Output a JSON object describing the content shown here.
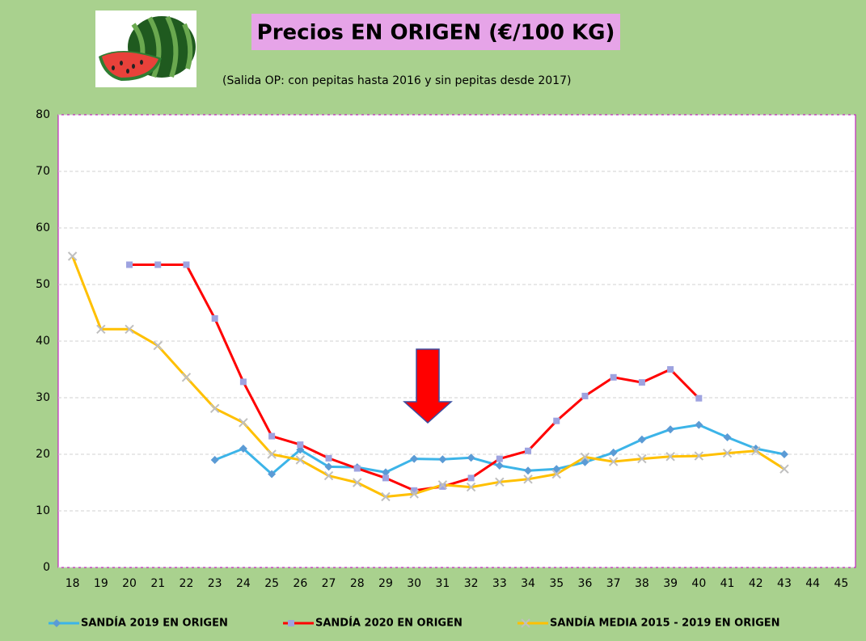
{
  "chart_data": {
    "type": "line",
    "title": "Precios EN ORIGEN (€/100 KG)",
    "subtitle": "(Salida OP: con pepitas hasta 2016 y sin pepitas desde 2017)",
    "categories": [
      "18",
      "19",
      "20",
      "21",
      "22",
      "23",
      "24",
      "25",
      "26",
      "27",
      "28",
      "29",
      "30",
      "31",
      "32",
      "33",
      "34",
      "35",
      "36",
      "37",
      "38",
      "39",
      "40",
      "41",
      "42",
      "43",
      "44",
      "45"
    ],
    "ylim": [
      0,
      80
    ],
    "yticks": [
      0,
      10,
      20,
      30,
      40,
      50,
      60,
      70,
      80
    ],
    "grid": true,
    "legend": "bottom",
    "series": [
      {
        "name": "SANDÍA 2019 EN ORIGEN",
        "color": "#3cb4e8",
        "marker": "diamond",
        "marker_color": "#5b9bd5",
        "values": [
          null,
          null,
          null,
          null,
          null,
          19,
          21,
          16.5,
          20.8,
          17.8,
          17.7,
          16.8,
          19.2,
          19.1,
          19.4,
          18,
          17.1,
          17.4,
          18.6,
          20.3,
          22.6,
          24.4,
          25.2,
          23,
          21,
          20,
          null,
          null
        ]
      },
      {
        "name": "SANDÍA 2020 EN ORIGEN",
        "color": "#ff0000",
        "marker": "square",
        "marker_color": "#9ea3e0",
        "values": [
          null,
          null,
          53.5,
          53.5,
          53.5,
          44,
          32.8,
          23.2,
          21.7,
          19.3,
          17.5,
          15.8,
          13.6,
          14.3,
          15.8,
          19.2,
          20.6,
          25.9,
          30.3,
          33.6,
          32.7,
          35,
          29.9,
          null,
          null,
          null,
          null,
          null
        ]
      },
      {
        "name": "SANDÍA MEDIA 2015 - 2019 EN ORIGEN",
        "color": "#ffc000",
        "marker": "x",
        "marker_color": "#bfbfbf",
        "values": [
          55,
          42.1,
          42.1,
          39.2,
          33.6,
          28.1,
          25.6,
          20,
          19,
          16.2,
          15,
          12.5,
          13,
          14.6,
          14.2,
          15.1,
          15.6,
          16.5,
          19.5,
          18.7,
          19.2,
          19.6,
          19.7,
          20.2,
          20.6,
          17.4,
          null,
          null
        ]
      }
    ]
  }
}
